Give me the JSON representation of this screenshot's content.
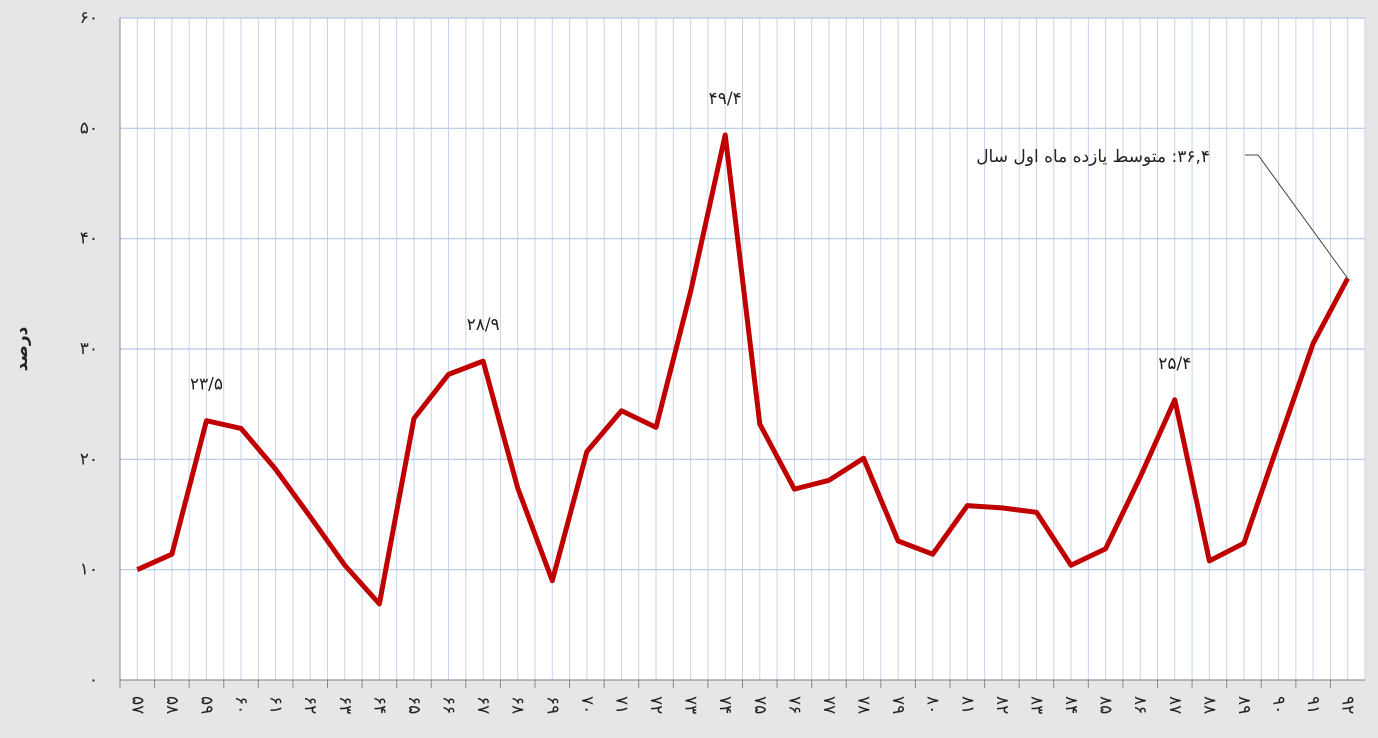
{
  "chart_data": {
    "type": "line",
    "y_label": "درصد",
    "categories": [
      "۵۷",
      "۵۸",
      "۵۹",
      "۶۰",
      "۶۱",
      "۶۲",
      "۶۳",
      "۶۴",
      "۶۵",
      "۶۶",
      "۶۷",
      "۶۸",
      "۶۹",
      "۷۰",
      "۷۱",
      "۷۲",
      "۷۳",
      "۷۴",
      "۷۵",
      "۷۶",
      "۷۷",
      "۷۸",
      "۷۹",
      "۸۰",
      "۸۱",
      "۸۲",
      "۸۳",
      "۸۴",
      "۸۵",
      "۸۶",
      "۸۷",
      "۸۸",
      "۸۹",
      "۹۰",
      "۹۱",
      "۹۲"
    ],
    "values": [
      10.0,
      11.4,
      23.5,
      22.8,
      19.1,
      14.8,
      10.4,
      6.9,
      23.7,
      27.7,
      28.9,
      17.4,
      9.0,
      20.7,
      24.4,
      22.9,
      35.2,
      49.4,
      23.2,
      17.3,
      18.1,
      20.1,
      12.6,
      11.4,
      15.8,
      15.6,
      15.2,
      10.4,
      11.9,
      18.4,
      25.4,
      10.8,
      12.4,
      21.5,
      30.5,
      36.4
    ],
    "value_labels": [
      null,
      null,
      "۲۳/۵",
      null,
      null,
      null,
      null,
      null,
      null,
      null,
      "۲۸/۹",
      null,
      null,
      null,
      null,
      null,
      null,
      "۴۹/۴",
      null,
      null,
      null,
      null,
      null,
      null,
      null,
      null,
      null,
      null,
      null,
      null,
      "۲۵/۴",
      null,
      null,
      null,
      null,
      "۳۶,۴: متوسط یازده ماه اول سال"
    ],
    "color": "#c00000",
    "ylim": [
      0,
      60
    ],
    "yticks": [
      {
        "value": 0,
        "label": "۰"
      },
      {
        "value": 10,
        "label": "۱۰"
      },
      {
        "value": 20,
        "label": "۲۰"
      },
      {
        "value": 30,
        "label": "۳۰"
      },
      {
        "value": 40,
        "label": "۴۰"
      },
      {
        "value": 50,
        "label": "۵۰"
      },
      {
        "value": 60,
        "label": "۶۰"
      }
    ],
    "grid": true
  }
}
